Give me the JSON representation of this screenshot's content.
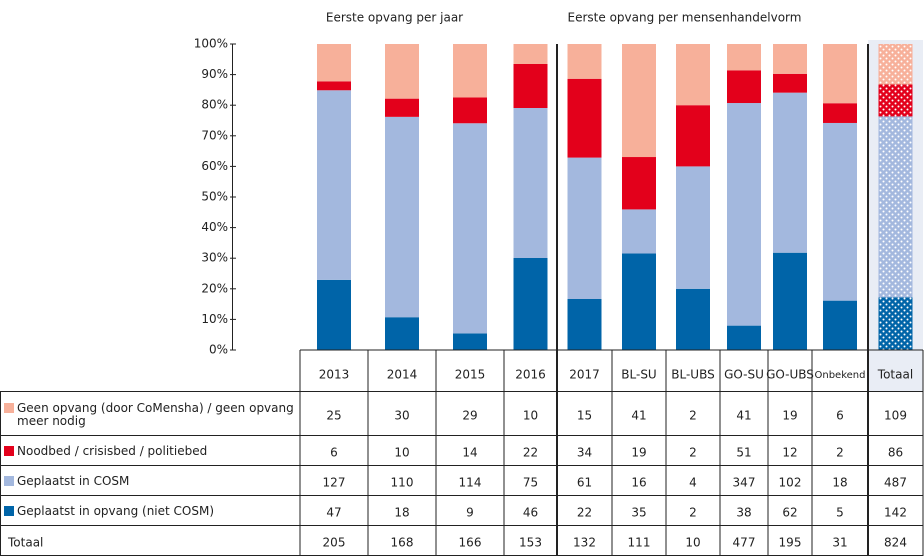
{
  "chart_data": {
    "type": "bar",
    "stacking": "percent",
    "group_titles": [
      "Eerste opvang per jaar",
      "Eerste opvang per mensenhandelvorm"
    ],
    "categories": [
      "2013",
      "2014",
      "2015",
      "2016",
      "2017",
      "BL-SU",
      "BL-UBS",
      "GO-SU",
      "GO-UBS",
      "Onbekend",
      "Totaal"
    ],
    "dotted_category_index": 10,
    "series": [
      {
        "name": "Geen opvang (door CoMensha) / geen opvang meer nodig",
        "color": "#f7b09a",
        "values": [
          25,
          30,
          29,
          10,
          15,
          41,
          2,
          41,
          19,
          6,
          109
        ]
      },
      {
        "name": "Noodbed / crisisbed / politiebed",
        "color": "#e3001b",
        "values": [
          6,
          10,
          14,
          22,
          34,
          19,
          2,
          51,
          12,
          2,
          86
        ]
      },
      {
        "name": "Geplaatst in COSM",
        "color": "#a3b8de",
        "values": [
          127,
          110,
          114,
          75,
          61,
          16,
          4,
          347,
          102,
          18,
          487
        ]
      },
      {
        "name": "Geplaatst in opvang (niet COSM)",
        "color": "#0064a8",
        "values": [
          47,
          18,
          9,
          46,
          22,
          35,
          2,
          38,
          62,
          5,
          142
        ]
      }
    ],
    "totals_label": "Totaal",
    "totals": [
      205,
      168,
      166,
      153,
      132,
      111,
      10,
      477,
      195,
      31,
      824
    ],
    "ylim": [
      0,
      100
    ],
    "yticks": [
      {
        "value": 0,
        "label": "0%"
      },
      {
        "value": 10,
        "label": "10%"
      },
      {
        "value": 20,
        "label": "20%"
      },
      {
        "value": 30,
        "label": "30%"
      },
      {
        "value": 40,
        "label": "40%"
      },
      {
        "value": 50,
        "label": "50%"
      },
      {
        "value": 60,
        "label": "60%"
      },
      {
        "value": 70,
        "label": "70%"
      },
      {
        "value": 80,
        "label": "80%"
      },
      {
        "value": 90,
        "label": "90%"
      },
      {
        "value": 100,
        "label": "100%"
      }
    ]
  }
}
